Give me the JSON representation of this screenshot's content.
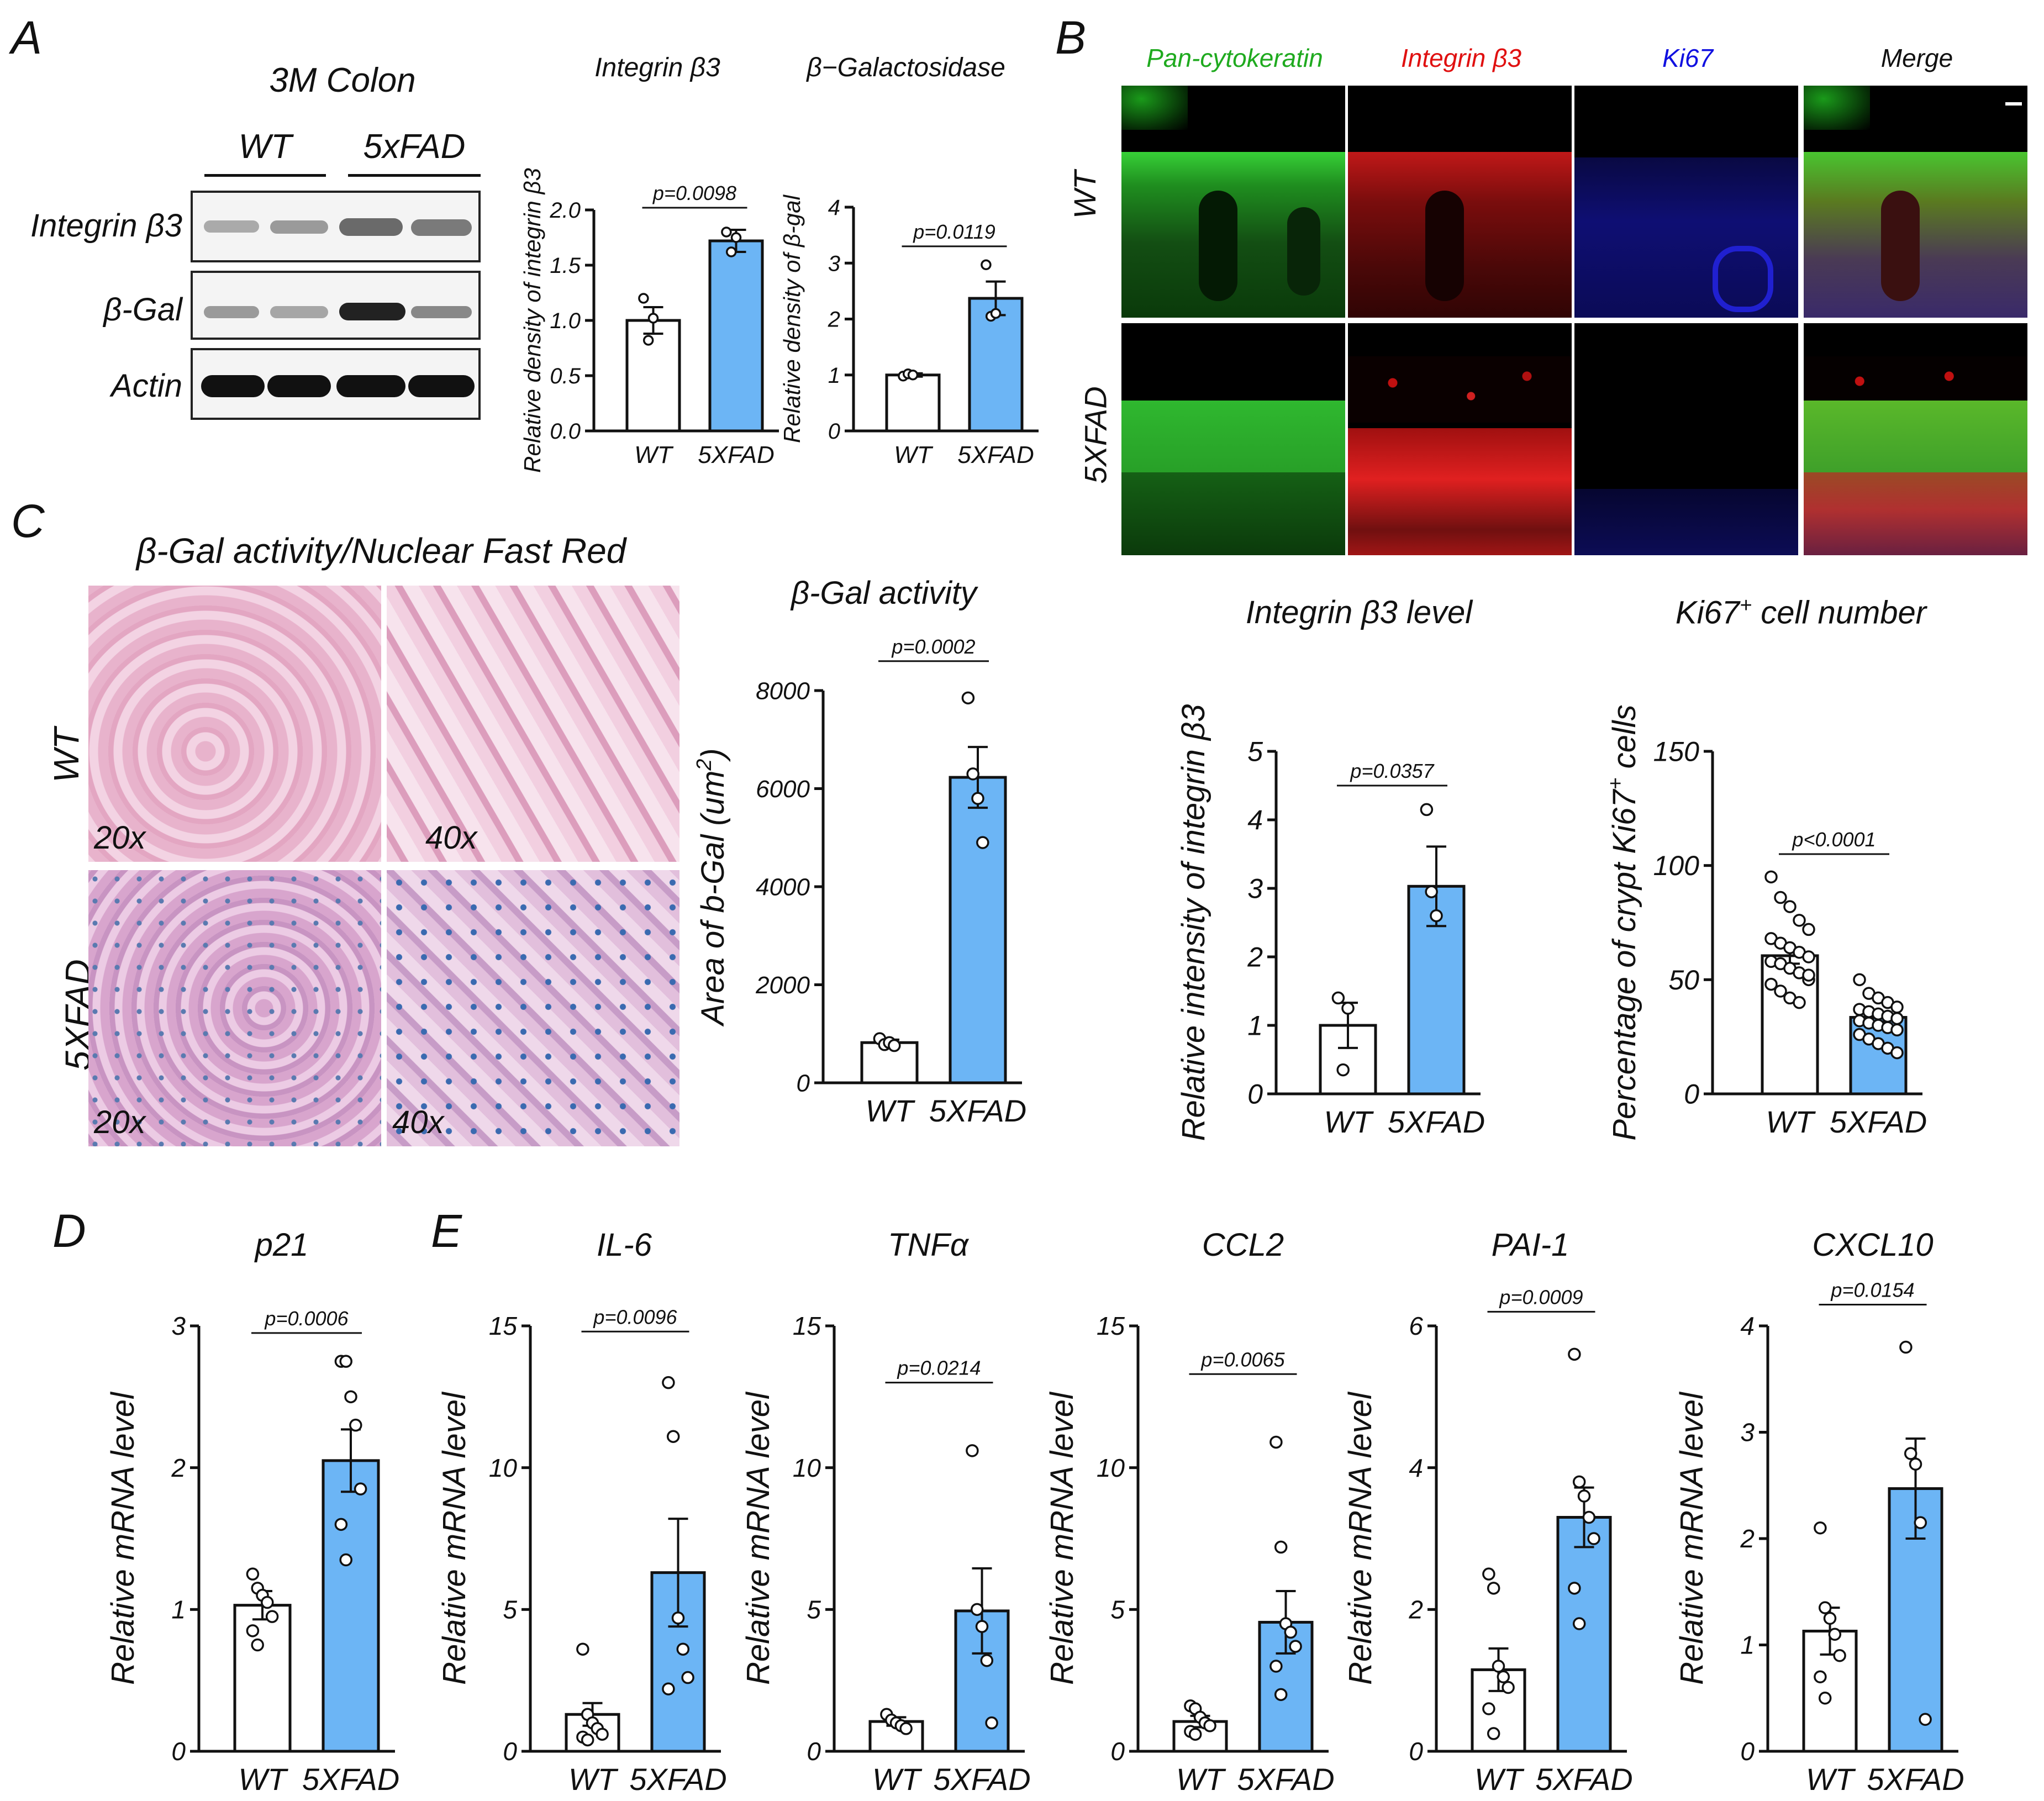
{
  "panels": {
    "A": {
      "letter": "A",
      "blot_title": "3M Colon",
      "groups": [
        "WT",
        "5xFAD"
      ],
      "rows": [
        "Integrin β3",
        "β-Gal",
        "Actin"
      ]
    },
    "B": {
      "letter": "B",
      "columns": [
        "Pan-cytokeratin",
        "Integrin β3",
        "Ki67",
        "Merge"
      ],
      "column_colors": [
        "#1faa1f",
        "#e01010",
        "#1010e0",
        "#111111"
      ],
      "rows": [
        "WT",
        "5XFAD"
      ]
    },
    "C": {
      "letter": "C",
      "histo_title": "β-Gal activity/Nuclear Fast Red",
      "rows": [
        "WT",
        "5XFAD"
      ],
      "magnifications": [
        "20x",
        "40x",
        "20x",
        "40x"
      ]
    },
    "D": {
      "letter": "D"
    },
    "E": {
      "letter": "E"
    }
  },
  "colors": {
    "wt_bar": "#ffffff",
    "fad_bar": "#6cb5f5",
    "stroke": "#111111"
  },
  "chart_data": [
    {
      "id": "integrin-b3-blot",
      "type": "bar",
      "title": "Integrin β3",
      "ylabel": "Relative density of integrin β3",
      "categories": [
        "WT",
        "5XFAD"
      ],
      "ylim": [
        0,
        2.0
      ],
      "yticks": [
        "0.0",
        "0.5",
        "1.0",
        "1.5",
        "2.0"
      ],
      "ytick_values": [
        0,
        0.5,
        1.0,
        1.5,
        2.0
      ],
      "values": [
        1.0,
        1.72
      ],
      "errors": [
        0.12,
        0.1
      ],
      "points": [
        [
          1.2,
          0.82,
          1.02
        ],
        [
          1.8,
          1.62,
          1.75
        ]
      ],
      "pvalue": "p=0.0098",
      "sig_y": 2.02
    },
    {
      "id": "bgal-blot",
      "type": "bar",
      "title": "β−Galactosidase",
      "ylabel": "Relative density of β-gal",
      "categories": [
        "WT",
        "5XFAD"
      ],
      "ylim": [
        0,
        4
      ],
      "yticks": [
        "0",
        "1",
        "2",
        "3",
        "4"
      ],
      "ytick_values": [
        0,
        1,
        2,
        3,
        4
      ],
      "values": [
        1.0,
        2.37
      ],
      "errors": [
        0.03,
        0.3
      ],
      "points": [
        [
          0.98,
          1.02,
          1.0
        ],
        [
          2.97,
          2.05,
          2.1
        ]
      ],
      "pvalue": "p=0.0119",
      "sig_y": 3.3
    },
    {
      "id": "integrin-b3-level",
      "type": "bar",
      "title": "Integrin β3 level",
      "ylabel": "Relative intensity of integrin β3",
      "categories": [
        "WT",
        "5XFAD"
      ],
      "ylim": [
        0,
        5
      ],
      "yticks": [
        "0",
        "1",
        "2",
        "3",
        "4",
        "5"
      ],
      "ytick_values": [
        0,
        1,
        2,
        3,
        4,
        5
      ],
      "values": [
        1.0,
        3.03
      ],
      "errors": [
        0.33,
        0.58
      ],
      "points": [
        [
          1.4,
          0.35,
          1.25
        ],
        [
          4.15,
          2.95,
          2.6
        ]
      ],
      "pvalue": "p=0.0357",
      "sig_y": 4.5
    },
    {
      "id": "ki67-cell-number",
      "type": "bar",
      "title": "Ki67+ cell number",
      "title_main": "Ki67",
      "title_sup": "+",
      "title_rest": " cell number",
      "ylabel": "Percentage of crypt Ki67+ cells",
      "ylabel_main": "Percentage of crypt Ki67",
      "ylabel_sup": "+",
      "ylabel_rest": " cells",
      "categories": [
        "WT",
        "5XFAD"
      ],
      "ylim": [
        0,
        150
      ],
      "yticks": [
        "0",
        "50",
        "100",
        "150"
      ],
      "ytick_values": [
        0,
        50,
        100,
        150
      ],
      "values": [
        60.5,
        33.5
      ],
      "errors": [
        3.5,
        2.0
      ],
      "points": [
        [
          95,
          86,
          82,
          76,
          72,
          68,
          66,
          64,
          62,
          60,
          58,
          57,
          55,
          53,
          50,
          48,
          45,
          42,
          40,
          52
        ],
        [
          50,
          44,
          42,
          40,
          38,
          37,
          36,
          35,
          34,
          33,
          32,
          31,
          30,
          29,
          28,
          26,
          24,
          22,
          20,
          18
        ]
      ],
      "pvalue": "p<0.0001",
      "sig_y": 105
    },
    {
      "id": "bgal-activity",
      "type": "bar",
      "title": "β-Gal activity",
      "ylabel": "Area of b-Gal (um2)",
      "ylabel_main": "Area of b-Gal (um",
      "ylabel_sup": "2",
      "ylabel_rest": ")",
      "categories": [
        "WT",
        "5XFAD"
      ],
      "ylim": [
        0,
        8000
      ],
      "yticks": [
        "0",
        "2000",
        "4000",
        "6000",
        "8000"
      ],
      "ytick_values": [
        0,
        2000,
        4000,
        6000,
        8000
      ],
      "values": [
        820,
        6230
      ],
      "errors": [
        60,
        620
      ],
      "points": [
        [
          900,
          780,
          820,
          760
        ],
        [
          7850,
          6300,
          5800,
          4900
        ]
      ],
      "pvalue": "p=0.0002",
      "sig_y": 8600
    },
    {
      "id": "p21",
      "type": "bar",
      "title": "p21",
      "ylabel": "Relative mRNA level",
      "categories": [
        "WT",
        "5XFAD"
      ],
      "ylim": [
        0,
        3
      ],
      "yticks": [
        "0",
        "1",
        "2",
        "3"
      ],
      "ytick_values": [
        0,
        1,
        2,
        3
      ],
      "values": [
        1.03,
        2.05
      ],
      "errors": [
        0.1,
        0.22
      ],
      "points": [
        [
          1.25,
          1.15,
          1.1,
          1.05,
          0.95,
          0.85,
          0.75
        ],
        [
          2.75,
          2.75,
          2.5,
          2.3,
          1.85,
          1.6,
          1.35
        ]
      ],
      "pvalue": "p=0.0006",
      "sig_y": 2.95
    },
    {
      "id": "il6",
      "type": "bar",
      "title": "IL-6",
      "ylabel": "Relative mRNA level",
      "categories": [
        "WT",
        "5XFAD"
      ],
      "ylim": [
        0,
        15
      ],
      "yticks": [
        "0",
        "5",
        "10",
        "15"
      ],
      "ytick_values": [
        0,
        5,
        10,
        15
      ],
      "values": [
        1.3,
        6.3
      ],
      "errors": [
        0.4,
        1.9
      ],
      "points": [
        [
          3.6,
          1.3,
          1.0,
          0.8,
          0.6,
          0.5,
          0.4
        ],
        [
          13.0,
          11.1,
          4.7,
          3.6,
          2.6,
          2.2
        ]
      ],
      "pvalue": "p=0.0096",
      "sig_y": 14.8
    },
    {
      "id": "tnfa",
      "type": "bar",
      "title": "TNFα",
      "ylabel": "Relative mRNA level",
      "categories": [
        "WT",
        "5XFAD"
      ],
      "ylim": [
        0,
        15
      ],
      "yticks": [
        "0",
        "5",
        "10",
        "15"
      ],
      "ytick_values": [
        0,
        5,
        10,
        15
      ],
      "values": [
        1.05,
        4.95
      ],
      "errors": [
        0.15,
        1.5
      ],
      "points": [
        [
          1.3,
          1.1,
          1.0,
          0.9,
          0.8
        ],
        [
          10.6,
          5.0,
          4.4,
          3.2,
          1.0
        ]
      ],
      "pvalue": "p=0.0214",
      "sig_y": 13.0
    },
    {
      "id": "ccl2",
      "type": "bar",
      "title": "CCL2",
      "ylabel": "Relative mRNA level",
      "categories": [
        "WT",
        "5XFAD"
      ],
      "ylim": [
        0,
        15
      ],
      "yticks": [
        "0",
        "5",
        "10",
        "15"
      ],
      "ytick_values": [
        0,
        5,
        10,
        15
      ],
      "values": [
        1.05,
        4.55
      ],
      "errors": [
        0.2,
        1.1
      ],
      "points": [
        [
          1.6,
          1.5,
          1.2,
          1.0,
          0.9,
          0.7,
          0.6
        ],
        [
          10.9,
          7.2,
          4.5,
          4.2,
          3.7,
          3.0,
          2.0
        ]
      ],
      "pvalue": "p=0.0065",
      "sig_y": 13.3
    },
    {
      "id": "pai1",
      "type": "bar",
      "title": "PAI-1",
      "ylabel": "Relative mRNA level",
      "categories": [
        "WT",
        "5XFAD"
      ],
      "ylim": [
        0,
        6
      ],
      "yticks": [
        "0",
        "2",
        "4",
        "6"
      ],
      "ytick_values": [
        0,
        2,
        4,
        6
      ],
      "values": [
        1.15,
        3.3
      ],
      "errors": [
        0.3,
        0.42
      ],
      "points": [
        [
          2.5,
          2.3,
          1.2,
          1.05,
          0.9,
          0.6,
          0.25
        ],
        [
          5.6,
          3.8,
          3.6,
          3.3,
          3.0,
          2.3,
          1.8
        ]
      ],
      "pvalue": "p=0.0009",
      "sig_y": 6.2
    },
    {
      "id": "cxcl10",
      "type": "bar",
      "title": "CXCL10",
      "ylabel": "Relative mRNA level",
      "categories": [
        "WT",
        "5XFAD"
      ],
      "ylim": [
        0,
        4
      ],
      "yticks": [
        "0",
        "1",
        "2",
        "3",
        "4"
      ],
      "ytick_values": [
        0,
        1,
        2,
        3,
        4
      ],
      "values": [
        1.13,
        2.47
      ],
      "errors": [
        0.22,
        0.47
      ],
      "points": [
        [
          2.1,
          1.35,
          1.25,
          1.1,
          0.9,
          0.7,
          0.5
        ],
        [
          3.8,
          2.8,
          2.7,
          2.15,
          0.3
        ]
      ],
      "pvalue": "p=0.0154",
      "sig_y": 4.2
    }
  ]
}
